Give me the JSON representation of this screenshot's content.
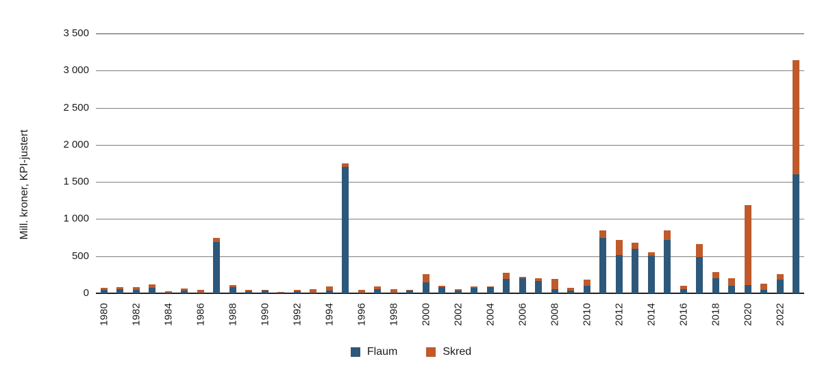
{
  "chart_data": {
    "type": "bar",
    "stacked": true,
    "ylabel": "Mill. kroner, KPI-justert",
    "xlabel": "",
    "ylim": [
      0,
      3500
    ],
    "ytick_step": 500,
    "x_tick_every": 2,
    "grid": true,
    "legend_position": "bottom",
    "categories": [
      1980,
      1981,
      1982,
      1983,
      1984,
      1985,
      1986,
      1987,
      1988,
      1989,
      1990,
      1991,
      1992,
      1993,
      1994,
      1995,
      1996,
      1997,
      1998,
      1999,
      2000,
      2001,
      2002,
      2003,
      2004,
      2005,
      2006,
      2007,
      2008,
      2009,
      2010,
      2011,
      2012,
      2013,
      2014,
      2015,
      2016,
      2017,
      2018,
      2019,
      2020,
      2021,
      2022,
      2023
    ],
    "series": [
      {
        "name": "Flaum",
        "color": "#2E587A",
        "values": [
          45,
          55,
          50,
          70,
          5,
          35,
          5,
          690,
          85,
          25,
          35,
          5,
          25,
          10,
          40,
          1700,
          5,
          60,
          10,
          35,
          150,
          85,
          35,
          70,
          85,
          190,
          200,
          165,
          55,
          40,
          100,
          750,
          520,
          600,
          505,
          720,
          60,
          490,
          200,
          100,
          115,
          45,
          180,
          1600
        ]
      },
      {
        "name": "Skred",
        "color": "#C05A2B",
        "values": [
          25,
          25,
          30,
          50,
          20,
          30,
          40,
          55,
          25,
          25,
          15,
          15,
          20,
          50,
          55,
          50,
          40,
          30,
          45,
          10,
          110,
          15,
          25,
          20,
          10,
          90,
          25,
          40,
          140,
          30,
          85,
          95,
          200,
          85,
          50,
          125,
          45,
          170,
          90,
          100,
          1070,
          85,
          75,
          1540
        ]
      }
    ]
  },
  "axis": {
    "y_tick_labels": [
      "0",
      "500",
      "1 000",
      "1 500",
      "2 000",
      "2 500",
      "3 000",
      "3 500"
    ]
  },
  "colors": {
    "gridline": "#7d7d7d",
    "axis_line": "#1f1f1f",
    "background": "#ffffff",
    "text": "#1a1a1a"
  }
}
